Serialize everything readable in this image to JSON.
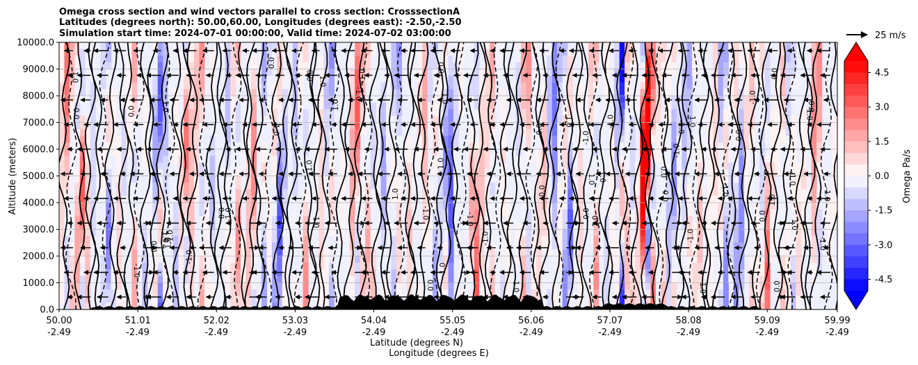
{
  "chart_data": {
    "type": "contour",
    "title": [
      "Omega cross section and wind vectors parallel to cross section: CrosssectionA",
      "Latitudes (degrees north): 50.00,60.00, Longitudes (degrees east): -2.50,-2.50",
      "Simulation start time: 2024-07-01 00:00:00, Valid time: 2024-07-02 03:00:00"
    ],
    "ylabel": "Altitude (meters)",
    "xlabel": [
      "Latitude (degrees N)",
      "Longitude (degrees E)"
    ],
    "ylim": [
      0,
      10000
    ],
    "yticks": [
      "0.0",
      "1000.0",
      "2000.0",
      "3000.0",
      "4000.0",
      "5000.0",
      "6000.0",
      "7000.0",
      "8000.0",
      "9000.0",
      "10000.0"
    ],
    "xlim": [
      50.0,
      59.99
    ],
    "xticks": [
      {
        "lat": "50.00",
        "lon": "-2.49"
      },
      {
        "lat": "51.01",
        "lon": "-2.49"
      },
      {
        "lat": "52.02",
        "lon": "-2.49"
      },
      {
        "lat": "53.03",
        "lon": "-2.49"
      },
      {
        "lat": "54.04",
        "lon": "-2.49"
      },
      {
        "lat": "55.05",
        "lon": "-2.49"
      },
      {
        "lat": "56.06",
        "lon": "-2.49"
      },
      {
        "lat": "57.07",
        "lon": "-2.49"
      },
      {
        "lat": "58.08",
        "lon": "-2.49"
      },
      {
        "lat": "59.09",
        "lon": "-2.49"
      },
      {
        "lat": "59.99",
        "lon": "-2.49"
      }
    ],
    "grid": "horizontal",
    "colorbar": {
      "label": "Omega Pa/s",
      "range": [
        -5,
        5
      ],
      "ticks": [
        "-4.5",
        "-3.0",
        "-1.5",
        "0.0",
        "1.5",
        "3.0",
        "4.5"
      ],
      "tick_values": [
        -4.5,
        -3.0,
        -1.5,
        0.0,
        1.5,
        3.0,
        4.5
      ],
      "colormap": "bwr",
      "extend": "both"
    },
    "quiver_key": {
      "label": "25 m/s"
    },
    "contour_levels": [
      "-1.0",
      "0.0",
      "1.0"
    ],
    "colors": {
      "negative": "#0000ff",
      "positive": "#ff0000",
      "terrain": "#000000"
    }
  }
}
